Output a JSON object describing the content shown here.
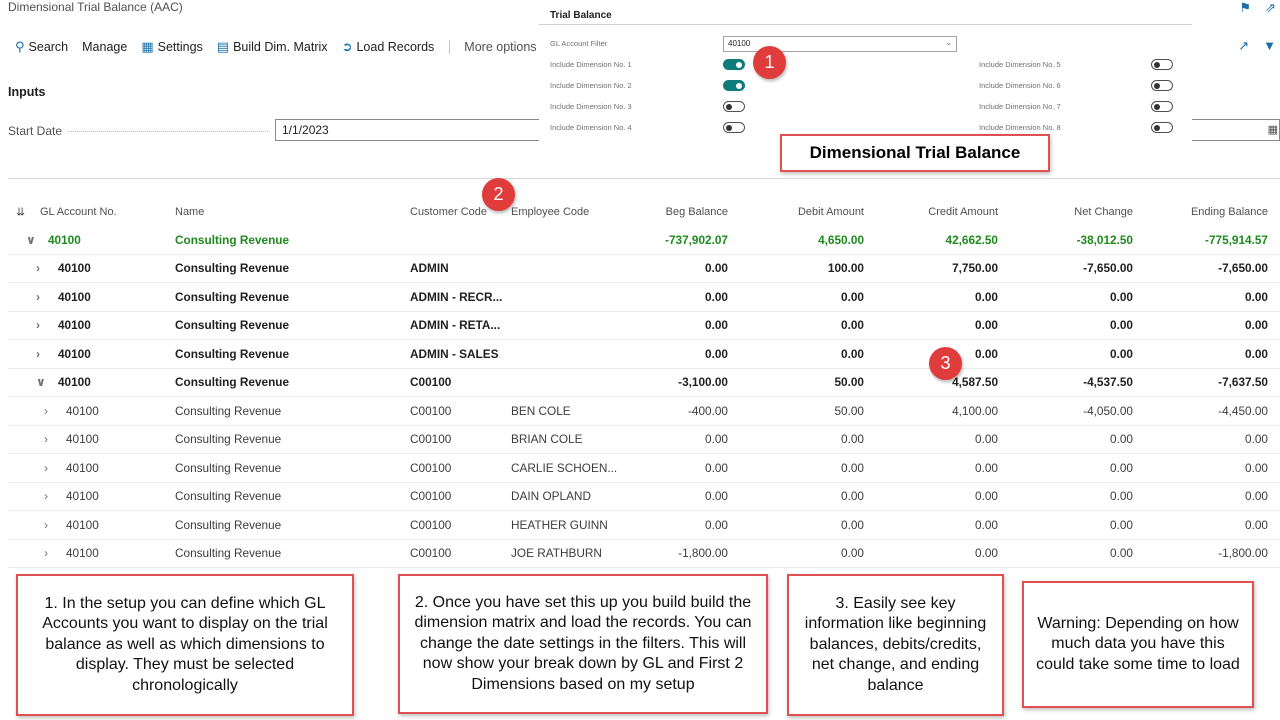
{
  "page": {
    "title": "Dimensional Trial Balance (AAC)"
  },
  "actionbar": {
    "search": "Search",
    "manage": "Manage",
    "settings": "Settings",
    "build": "Build Dim. Matrix",
    "load": "Load Records",
    "more": "More options"
  },
  "inputs": {
    "section_title": "Inputs",
    "start_date_label": "Start Date",
    "start_date_value": "1/1/2023"
  },
  "grid": {
    "columns": {
      "account": "GL Account No.",
      "name": "Name",
      "customer": "Customer Code",
      "employee": "Employee Code",
      "beg": "Beg Balance",
      "debit": "Debit Amount",
      "credit": "Credit Amount",
      "net": "Net Change",
      "ending": "Ending Balance"
    },
    "rows": [
      {
        "level": 0,
        "expanded": true,
        "account": "40100",
        "name": "Consulting Revenue",
        "customer": "",
        "employee": "",
        "beg": "-737,902.07",
        "debit": "4,650.00",
        "credit": "42,662.50",
        "net": "-38,012.50",
        "ending": "-775,914.57"
      },
      {
        "level": 1,
        "expanded": false,
        "account": "40100",
        "name": "Consulting Revenue",
        "customer": "ADMIN",
        "employee": "",
        "beg": "0.00",
        "debit": "100.00",
        "credit": "7,750.00",
        "net": "-7,650.00",
        "ending": "-7,650.00"
      },
      {
        "level": 1,
        "expanded": false,
        "account": "40100",
        "name": "Consulting Revenue",
        "customer": "ADMIN - RECR...",
        "employee": "",
        "beg": "0.00",
        "debit": "0.00",
        "credit": "0.00",
        "net": "0.00",
        "ending": "0.00"
      },
      {
        "level": 1,
        "expanded": false,
        "account": "40100",
        "name": "Consulting Revenue",
        "customer": "ADMIN - RETA...",
        "employee": "",
        "beg": "0.00",
        "debit": "0.00",
        "credit": "0.00",
        "net": "0.00",
        "ending": "0.00"
      },
      {
        "level": 1,
        "expanded": false,
        "account": "40100",
        "name": "Consulting Revenue",
        "customer": "ADMIN - SALES",
        "employee": "",
        "beg": "0.00",
        "debit": "0.00",
        "credit": "0.00",
        "net": "0.00",
        "ending": "0.00"
      },
      {
        "level": 1,
        "expanded": true,
        "account": "40100",
        "name": "Consulting Revenue",
        "customer": "C00100",
        "employee": "",
        "beg": "-3,100.00",
        "debit": "50.00",
        "credit": "4,587.50",
        "net": "-4,537.50",
        "ending": "-7,637.50"
      },
      {
        "level": 2,
        "expanded": false,
        "account": "40100",
        "name": "Consulting Revenue",
        "customer": "C00100",
        "employee": "BEN COLE",
        "beg": "-400.00",
        "debit": "50.00",
        "credit": "4,100.00",
        "net": "-4,050.00",
        "ending": "-4,450.00"
      },
      {
        "level": 2,
        "expanded": false,
        "account": "40100",
        "name": "Consulting Revenue",
        "customer": "C00100",
        "employee": "BRIAN COLE",
        "beg": "0.00",
        "debit": "0.00",
        "credit": "0.00",
        "net": "0.00",
        "ending": "0.00"
      },
      {
        "level": 2,
        "expanded": false,
        "account": "40100",
        "name": "Consulting Revenue",
        "customer": "C00100",
        "employee": "CARLIE SCHOEN...",
        "beg": "0.00",
        "debit": "0.00",
        "credit": "0.00",
        "net": "0.00",
        "ending": "0.00"
      },
      {
        "level": 2,
        "expanded": false,
        "account": "40100",
        "name": "Consulting Revenue",
        "customer": "C00100",
        "employee": "DAIN OPLAND",
        "beg": "0.00",
        "debit": "0.00",
        "credit": "0.00",
        "net": "0.00",
        "ending": "0.00"
      },
      {
        "level": 2,
        "expanded": false,
        "account": "40100",
        "name": "Consulting Revenue",
        "customer": "C00100",
        "employee": "HEATHER GUINN",
        "beg": "0.00",
        "debit": "0.00",
        "credit": "0.00",
        "net": "0.00",
        "ending": "0.00"
      },
      {
        "level": 2,
        "expanded": false,
        "account": "40100",
        "name": "Consulting Revenue",
        "customer": "C00100",
        "employee": "JOE RATHBURN",
        "beg": "-1,800.00",
        "debit": "0.00",
        "credit": "0.00",
        "net": "0.00",
        "ending": "-1,800.00"
      }
    ]
  },
  "trial_balance_panel": {
    "title": "Trial Balance",
    "filter_label": "GL Account Filter",
    "filter_value": "40100",
    "dimensions_left": [
      {
        "label": "Include Dimension No. 1",
        "on": true
      },
      {
        "label": "Include Dimension No. 2",
        "on": true
      },
      {
        "label": "Include Dimension No. 3",
        "on": false
      },
      {
        "label": "Include Dimension No. 4",
        "on": false
      }
    ],
    "dimensions_right": [
      {
        "label": "Include Dimension No. 5",
        "on": false
      },
      {
        "label": "Include Dimension No. 6",
        "on": false
      },
      {
        "label": "Include Dimension No. 7",
        "on": false
      },
      {
        "label": "Include Dimension No. 8",
        "on": false
      }
    ]
  },
  "callouts": {
    "badge1": "1",
    "badge2": "2",
    "badge3": "3",
    "title": "Dimensional Trial Balance",
    "note1": "1. In the setup you can define which GL Accounts you want to display on the trial balance as well as which dimensions to display. They must be selected chronologically",
    "note2": "2. Once you have set this up you build build the dimension matrix and load the records. You can change the date settings in the filters. This will now show your break down by GL and First 2 Dimensions based on my setup",
    "note3": "3. Easily see key information like beginning balances, debits/credits, net change, and ending balance",
    "note4": "Warning: Depending on how much data you have this could take some time to load"
  },
  "colors": {
    "accent": "#1a6fa8",
    "toggle_on": "#0f7b7b",
    "group_green": "#1e8a1e",
    "callout_red": "#e03c3c"
  }
}
